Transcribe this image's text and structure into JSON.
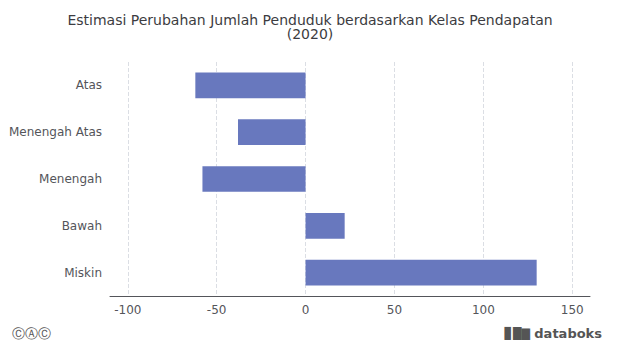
{
  "chart_data": {
    "type": "bar",
    "orientation": "horizontal",
    "title": "Estimasi Perubahan Jumlah Penduduk berdasarkan Kelas Pendapatan\n(2020)",
    "categories": [
      "Atas",
      "Menengah Atas",
      "Menengah",
      "Bawah",
      "Miskin"
    ],
    "values": [
      -62,
      -38,
      -58,
      22,
      130
    ],
    "color": "#6878be",
    "xlim": [
      -110,
      160
    ],
    "xticks": [
      -100,
      -50,
      0,
      50,
      100,
      150
    ],
    "grid": true,
    "annotations": [
      "ⒸⒶⒸ",
      "▊█▇",
      "databoks"
    ]
  }
}
